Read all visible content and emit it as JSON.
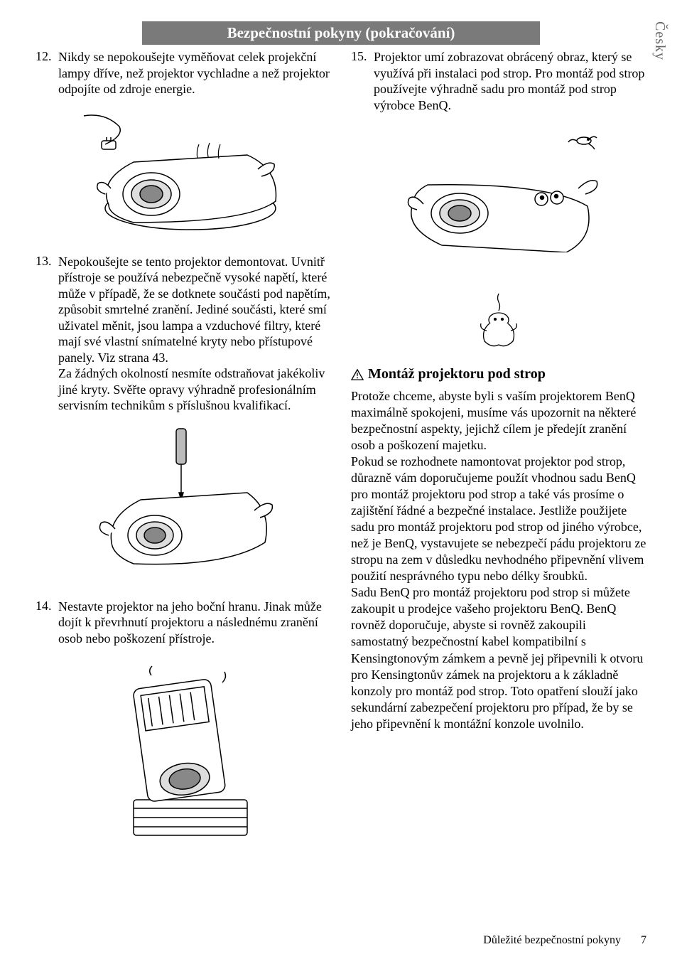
{
  "header": {
    "title": "Bezpečnostní pokyny (pokračování)"
  },
  "sideTab": "Česky",
  "leftColumn": {
    "item12": {
      "num": "12.",
      "text": "Nikdy se nepokoušejte vyměňovat celek projekční lampy dříve, než projektor vychladne a než projektor odpojíte od zdroje energie."
    },
    "item13": {
      "num": "13.",
      "text": "Nepokoušejte se tento projektor demontovat. Uvnitř přístroje se používá nebezpečně vysoké napětí, které může v případě, že se dotknete součásti pod napětím, způsobit smrtelné zranění. Jediné součásti, které smí uživatel měnit, jsou lampa a vzduchové filtry, které mají své vlastní snímatelné kryty nebo přístupové panely. Viz strana 43.\nZa žádných okolností nesmíte odstraňovat jakékoliv jiné kryty. Svěřte opravy výhradně profesionálním servisním technikům s příslušnou kvalifikací."
    },
    "item14": {
      "num": "14.",
      "text": "Nestavte projektor na jeho boční hranu. Jinak může dojít k převrhnutí projektoru a následnému zranění osob nebo poškození přístroje."
    }
  },
  "rightColumn": {
    "item15": {
      "num": "15.",
      "text": "Projektor umí zobrazovat obrácený obraz, který se využívá při instalaci pod strop. Pro montáž pod strop používejte výhradně sadu pro montáž pod strop výrobce BenQ."
    },
    "warningTitle": "Montáž projektoru pod strop",
    "bodyText": "Protože chceme, abyste byli s vaším projektorem BenQ maximálně spokojeni, musíme vás upozornit na některé bezpečnostní aspekty, jejichž cílem je předejít zranění osob a poškození majetku.\nPokud se rozhodnete namontovat projektor pod strop, důrazně vám doporučujeme použít vhodnou sadu BenQ pro montáž projektoru pod strop a také vás prosíme o zajištění řádné a bezpečné instalace. Jestliže použijete sadu pro montáž projektoru pod strop od jiného výrobce, než je BenQ, vystavujete se nebezpečí pádu projektoru ze stropu na zem v důsledku nevhodného připevnění vlivem použití nesprávného typu nebo délky šroubků.\nSadu BenQ pro montáž projektoru pod strop si můžete zakoupit u prodejce vašeho projektoru BenQ. BenQ rovněž doporučuje, abyste si rovněž zakoupili samostatný bezpečnostní kabel kompatibilní s Kensingtonovým zámkem a pevně jej připevnili k otvoru pro Kensingtonův zámek na projektoru a k základně konzoly pro montáž pod strop. Toto opatření slouží jako sekundární zabezpečení projektoru pro případ, že by se jeho připevnění k montážní konzole uvolnilo."
  },
  "footer": {
    "section": "Důležité bezpečnostní pokyny",
    "page": "7"
  },
  "colors": {
    "headerBg": "#7a7a7a",
    "text": "#000000",
    "sideTab": "#666666"
  }
}
